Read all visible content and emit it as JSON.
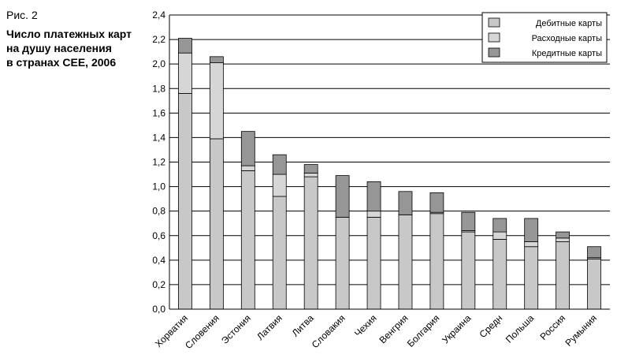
{
  "figure": {
    "number": "Рис. 2",
    "title_lines": [
      "Число платежных карт",
      "на душу населения",
      "в странах СЕЕ, 2006"
    ]
  },
  "chart_data": {
    "type": "bar",
    "stacked": true,
    "categories": [
      "Хорватия",
      "Словения",
      "Эстония",
      "Латвия",
      "Литва",
      "Словакия",
      "Чехия",
      "Венгрия",
      "Болгария",
      "Украина",
      "Средн",
      "Польша",
      "Россия",
      "Румыния"
    ],
    "series": [
      {
        "name": "Дебитные карты",
        "color": "#c8c8c8",
        "values": [
          1.76,
          1.39,
          1.13,
          0.92,
          1.08,
          0.75,
          0.75,
          0.77,
          0.78,
          0.63,
          0.57,
          0.51,
          0.55,
          0.41
        ]
      },
      {
        "name": "Расходные карты",
        "color": "#d6d6d6",
        "values": [
          0.33,
          0.62,
          0.04,
          0.18,
          0.03,
          0.0,
          0.05,
          0.0,
          0.01,
          0.01,
          0.06,
          0.04,
          0.03,
          0.01
        ]
      },
      {
        "name": "Кредитные карты",
        "color": "#969696",
        "values": [
          0.12,
          0.05,
          0.28,
          0.16,
          0.07,
          0.34,
          0.24,
          0.19,
          0.16,
          0.15,
          0.11,
          0.19,
          0.05,
          0.09
        ]
      }
    ],
    "ylim": [
      0,
      2.4
    ],
    "yticks": [
      "0,0",
      "0,2",
      "0,4",
      "0,6",
      "0,8",
      "1,0",
      "1,2",
      "1,4",
      "1,6",
      "1,8",
      "2,0",
      "2,2",
      "2,4"
    ],
    "grid": true,
    "legend_position": "top-right",
    "xlabel": "",
    "ylabel": ""
  }
}
